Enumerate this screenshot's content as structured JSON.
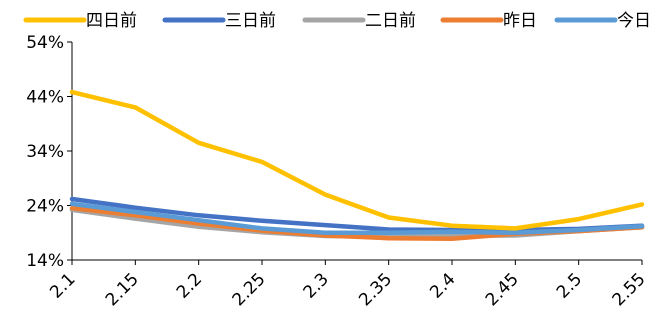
{
  "chart_data": {
    "type": "line",
    "x": [
      "2.1",
      "2.15",
      "2.2",
      "2.25",
      "2.3",
      "2.35",
      "2.4",
      "2.45",
      "2.5",
      "2.55"
    ],
    "ylim": [
      14,
      54
    ],
    "yticks": [
      "14%",
      "24%",
      "34%",
      "44%",
      "54%"
    ],
    "grid": false,
    "legend_position": "top",
    "series": [
      {
        "name": "四日前",
        "color": "#FFC000",
        "values": [
          44.8,
          42.0,
          35.5,
          32.0,
          26.0,
          21.8,
          20.3,
          19.8,
          21.5,
          24.2
        ]
      },
      {
        "name": "三日前",
        "color": "#4472C4",
        "values": [
          25.2,
          23.6,
          22.2,
          21.2,
          20.4,
          19.6,
          19.5,
          19.5,
          19.7,
          20.3
        ]
      },
      {
        "name": "二日前",
        "color": "#A5A5A5",
        "values": [
          23.2,
          21.6,
          20.1,
          19.1,
          18.4,
          18.3,
          18.4,
          18.5,
          19.3,
          20.0
        ]
      },
      {
        "name": "昨日",
        "color": "#ED7D31",
        "values": [
          23.5,
          22.2,
          20.7,
          19.4,
          18.5,
          18.0,
          17.9,
          18.8,
          19.3,
          20.0
        ]
      },
      {
        "name": "今日",
        "color": "#5B9BD5",
        "values": [
          24.3,
          22.8,
          21.3,
          19.8,
          19.0,
          19.0,
          19.2,
          19.0,
          19.5,
          20.2
        ]
      }
    ]
  }
}
